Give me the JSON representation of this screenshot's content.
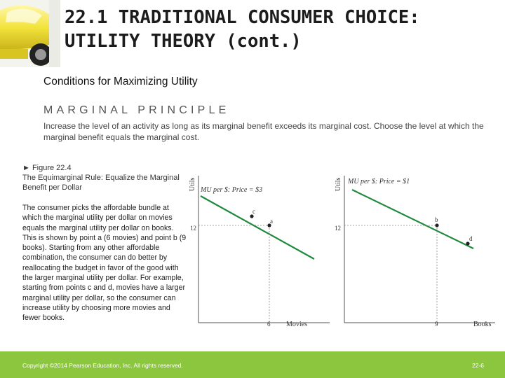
{
  "slide": {
    "title": "22.1 TRADITIONAL CONSUMER CHOICE: UTILITY THEORY (cont.)",
    "section_title": "Conditions for Maximizing Utility",
    "principle_heading": "MARGINAL PRINCIPLE",
    "principle_text": "Increase the level of an activity as long as its marginal benefit exceeds its marginal cost. Choose the level at which the marginal benefit equals the marginal cost.",
    "figure_label": "► Figure 22.4",
    "figure_title": "The Equimarginal Rule: Equalize the Marginal Benefit per Dollar",
    "figure_text": "The consumer picks the affordable bundle at which the marginal utility per dollar on movies equals the marginal utility per dollar on books. This is shown by point a (6 movies) and point b (9 books). Starting from any other affordable combination, the consumer can do better by reallocating the budget in favor of the good with the larger marginal utility per dollar. For example, starting from points c and d, movies have a larger marginal utility per dollar, so the consumer can increase utility by choosing more movies and fewer books."
  },
  "chart_data": [
    {
      "type": "line",
      "ylabel": "Utils",
      "xlabel": "Movies",
      "series": [
        {
          "name": "MU per $: Price = $3",
          "values": []
        }
      ],
      "y_tick_labels": [
        "12"
      ],
      "x_tick_labels": [
        "6"
      ],
      "points": [
        {
          "label": "c",
          "x": 5,
          "y": 13
        },
        {
          "label": "a",
          "x": 6,
          "y": 12
        }
      ],
      "line_color": "#1f8a3d"
    },
    {
      "type": "line",
      "ylabel": "Utils",
      "xlabel": "Books",
      "series": [
        {
          "name": "MU per $: Price = $1",
          "values": []
        }
      ],
      "y_tick_labels": [
        "12"
      ],
      "x_tick_labels": [
        "9"
      ],
      "points": [
        {
          "label": "b",
          "x": 9,
          "y": 12
        },
        {
          "label": "d",
          "x": 10,
          "y": 11
        }
      ],
      "line_color": "#1f8a3d"
    }
  ],
  "footer": {
    "copyright": "Copyright ©2014 Pearson Education, Inc. All rights reserved.",
    "page": "22-6"
  },
  "colors": {
    "footer_bar": "#8cc63f",
    "curve": "#1f8a3d",
    "car_body": "#f2e33a"
  }
}
